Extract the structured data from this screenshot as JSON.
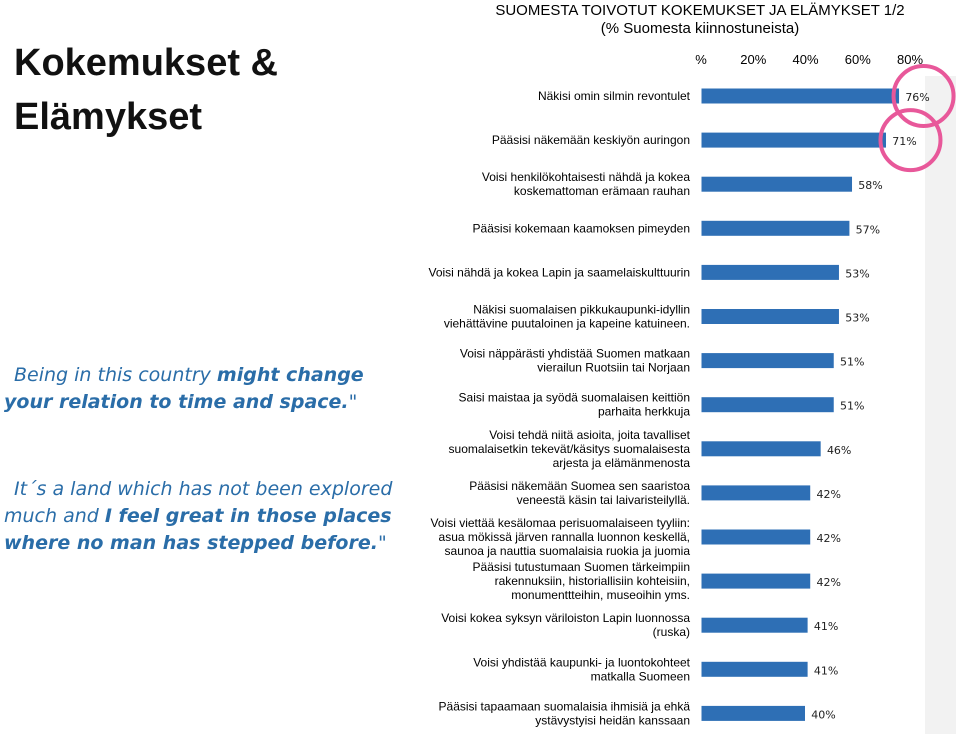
{
  "page": {
    "title_line1": "Kokemukset &",
    "title_line2": "Elämykset"
  },
  "chart_title": {
    "line1": "SUOMESTA TOIVOTUT KOKEMUKSET JA ELÄMYKSET 1/2",
    "line2": "(% Suomesta kiinnostuneista)"
  },
  "quotes": [
    {
      "lead": "Being in this country ",
      "bold": "might change your relation to time and space.",
      "tail": "\""
    },
    {
      "lead": "It´s a land which has not been explored much and ",
      "bold": "I feel great in those places where no man has stepped before.",
      "tail": "\""
    }
  ],
  "colors": {
    "bar": "#2e6fb5",
    "bar_border": "#ffffff",
    "highlight_circle": "#e8589a",
    "quote_text": "#2a6da8",
    "plot_band": "#f2f2f2"
  },
  "chart_data": {
    "type": "bar",
    "orientation": "horizontal",
    "axis_ticks": [
      "%",
      "20%",
      "40%",
      "60%",
      "80%"
    ],
    "xlim": [
      0,
      85
    ],
    "categories": [
      "Näkisi omin silmin revontulet",
      "Pääsisi näkemään keskiyön auringon",
      "Voisi henkilökohtaisesti nähdä ja kokea koskemattoman erämaan rauhan",
      "Pääsisi kokemaan kaamoksen pimeyden",
      "Voisi nähdä ja kokea Lapin ja saamelaiskulttuurin",
      "Näkisi suomalaisen pikkukaupunki-idyllin viehättävine puutaloinen ja kapeine katuineen.",
      "Voisi näppärästi yhdistää Suomen matkaan vierailun Ruotsiin tai Norjaan",
      "Saisi maistaa ja syödä suomalaisen keittiön parhaita herkkuja",
      "Voisi tehdä niitä asioita, joita tavalliset suomalaisetkin tekevät/käsitys suomalaisesta arjesta ja elämänmenosta",
      "Pääsisi näkemään Suomea sen saaristoa veneestä käsin tai laivaristeilyllä.",
      "Voisi viettää kesälomaa perisuomalaiseen tyyliin: asua mökissä järven rannalla luonnon keskellä, saunoa ja nauttia suomalaisia ruokia ja juomia",
      "Pääsisi tutustumaan Suomen tärkeimpiin rakennuksiin, historiallisiin kohteisiin, monumenttteihin, museoihin yms.",
      "Voisi kokea syksyn väriloiston Lapin luonnossa (ruska)",
      "Voisi yhdistää kaupunki- ja luontokohteet matkalla Suomeen",
      "Pääsisi tapaamaan suomalaisia ihmisiä ja ehkä ystävystyisi heidän kanssaan"
    ],
    "label_lines": [
      [
        "Näkisi omin silmin revontulet"
      ],
      [
        "Pääsisi näkemään keskiyön auringon"
      ],
      [
        "Voisi henkilökohtaisesti nähdä ja kokea",
        "koskemattoman erämaan rauhan"
      ],
      [
        "Pääsisi kokemaan kaamoksen pimeyden"
      ],
      [
        "Voisi nähdä ja kokea Lapin ja saamelaiskulttuurin"
      ],
      [
        "Näkisi suomalaisen pikkukaupunki-idyllin",
        "viehättävine puutaloinen ja kapeine katuineen."
      ],
      [
        "Voisi näppärästi yhdistää Suomen matkaan",
        "vierailun Ruotsiin tai Norjaan"
      ],
      [
        "Saisi maistaa ja syödä suomalaisen keittiön",
        "parhaita herkkuja"
      ],
      [
        "Voisi tehdä niitä asioita, joita tavalliset",
        "suomalaisetkin tekevät/käsitys suomalaisesta",
        "arjesta ja elämänmenosta"
      ],
      [
        "Pääsisi näkemään Suomea sen saaristoa",
        "veneestä käsin tai laivaristeilyllä."
      ],
      [
        "Voisi viettää kesälomaa perisuomalaiseen tyyliin:",
        "asua mökissä järven rannalla luonnon keskellä,",
        "saunoa ja nauttia suomalaisia ruokia ja juomia"
      ],
      [
        "Pääsisi tutustumaan Suomen tärkeimpiin",
        "rakennuksiin, historiallisiin kohteisiin,",
        "monumenttteihin, museoihin yms."
      ],
      [
        "Voisi kokea syksyn väriloiston Lapin luonnossa",
        "(ruska)"
      ],
      [
        "Voisi yhdistää kaupunki- ja luontokohteet",
        "matkalla Suomeen"
      ],
      [
        "Pääsisi tapaamaan suomalaisia ihmisiä ja ehkä",
        "ystävystyisi heidän kanssaan"
      ]
    ],
    "values": [
      76,
      71,
      58,
      57,
      53,
      53,
      51,
      51,
      46,
      42,
      42,
      42,
      41,
      41,
      40
    ],
    "value_labels": [
      "76%",
      "71%",
      "58%",
      "57%",
      "53%",
      "53%",
      "51%",
      "51%",
      "46%",
      "42%",
      "42%",
      "42%",
      "41%",
      "41%",
      "40%"
    ],
    "highlighted": [
      0,
      1
    ],
    "grid": false,
    "legend": "none"
  }
}
